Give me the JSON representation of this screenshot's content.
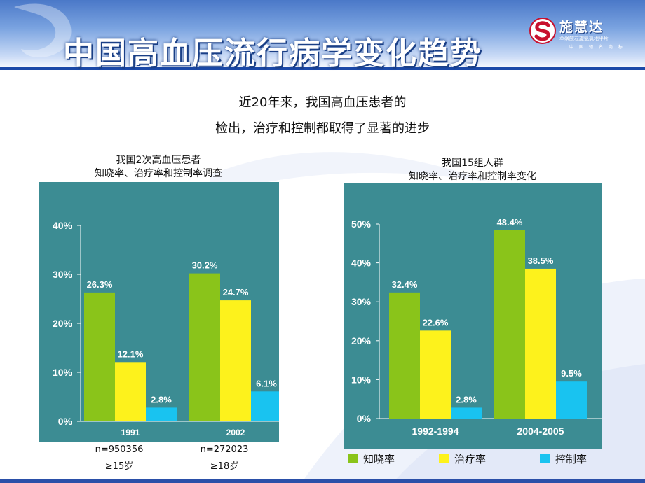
{
  "title": "中国高血压流行病学变化趋势",
  "logo": {
    "brand": "施慧达",
    "tagline": "苯磺酸左旋氨氯地平片",
    "sub": "中国驰名商标"
  },
  "subtitle": {
    "line1": "近20年来，我国高血压患者的",
    "line2": "检出，治疗和控制都取得了显著的进步"
  },
  "colors": {
    "panel": "#3c8c93",
    "awareness": "#8ac41a",
    "treatment": "#fdf21c",
    "control": "#19c3f0",
    "axis_text": "#ffffff"
  },
  "chart_data": [
    {
      "type": "bar",
      "title_line1": "我国2次高血压患者",
      "title_line2": "知晓率、治疗率和控制率调查",
      "categories": [
        "1991",
        "2002"
      ],
      "series": [
        {
          "name": "知晓率",
          "values": [
            26.3,
            30.2
          ]
        },
        {
          "name": "治疗率",
          "values": [
            12.1,
            24.7
          ]
        },
        {
          "name": "控制率",
          "values": [
            2.8,
            6.1
          ]
        }
      ],
      "data_labels": [
        [
          "26.3%",
          "12.1%",
          "2.8%"
        ],
        [
          "30.2%",
          "24.7%",
          "6.1%"
        ]
      ],
      "ylim": [
        0,
        40
      ],
      "yticks": [
        "0%",
        "10%",
        "20%",
        "30%",
        "40%"
      ],
      "footnotes": [
        {
          "n": "n=950356",
          "age": "≥15岁"
        },
        {
          "n": "n=272023",
          "age": "≥18岁"
        }
      ]
    },
    {
      "type": "bar",
      "title_line1": "我国15组人群",
      "title_line2": "知晓率、治疗率和控制率变化",
      "categories": [
        "1992-1994",
        "2004-2005"
      ],
      "series": [
        {
          "name": "知晓率",
          "values": [
            32.4,
            48.4
          ]
        },
        {
          "name": "治疗率",
          "values": [
            22.6,
            38.5
          ]
        },
        {
          "name": "控制率",
          "values": [
            2.8,
            9.5
          ]
        }
      ],
      "data_labels": [
        [
          "32.4%",
          "22.6%",
          "2.8%"
        ],
        [
          "48.4%",
          "38.5%",
          "9.5%"
        ]
      ],
      "ylim": [
        0,
        50
      ],
      "yticks": [
        "0%",
        "10%",
        "20%",
        "30%",
        "40%",
        "50%"
      ],
      "legend": [
        {
          "label": "知晓率",
          "color": "#8ac41a"
        },
        {
          "label": "治疗率",
          "color": "#fdf21c"
        },
        {
          "label": "控制率",
          "color": "#19c3f0"
        }
      ]
    }
  ]
}
